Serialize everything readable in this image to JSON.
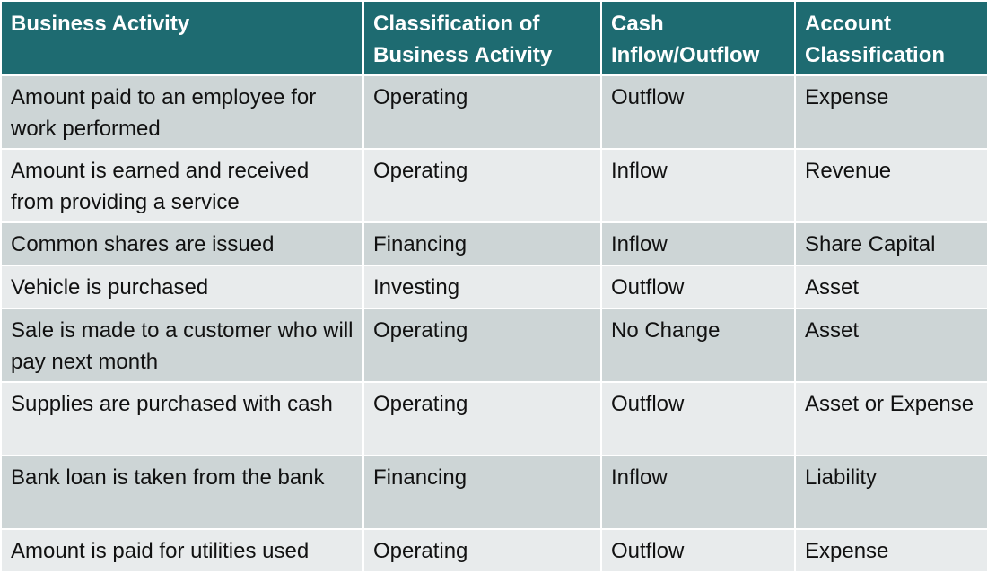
{
  "headers": [
    "Business Activity",
    "Classification of Business Activity",
    "Cash Inflow/Outflow",
    "Account Classification"
  ],
  "rows": [
    [
      "Amount paid to an employee for work performed",
      "Operating",
      "Outflow",
      "Expense"
    ],
    [
      "Amount is earned and received from providing a service",
      "Operating",
      "Inflow",
      "Revenue"
    ],
    [
      "Common shares are issued",
      "Financing",
      "Inflow",
      "Share Capital"
    ],
    [
      "Vehicle is purchased",
      "Investing",
      "Outflow",
      "Asset"
    ],
    [
      "Sale is made to a customer who will pay next month",
      "Operating",
      "No Change",
      "Asset"
    ],
    [
      "Supplies are purchased with cash",
      "Operating",
      "Outflow",
      "Asset or Expense"
    ],
    [
      "Bank loan is taken from the bank",
      "Financing",
      "Inflow",
      "Liability"
    ],
    [
      "Amount is paid for utilities used",
      "Operating",
      "Outflow",
      "Expense"
    ]
  ],
  "colors": {
    "header_bg": "#1e6b71",
    "header_text": "#ffffff",
    "row_odd_bg": "#cdd5d6",
    "row_even_bg": "#e8ebec"
  }
}
